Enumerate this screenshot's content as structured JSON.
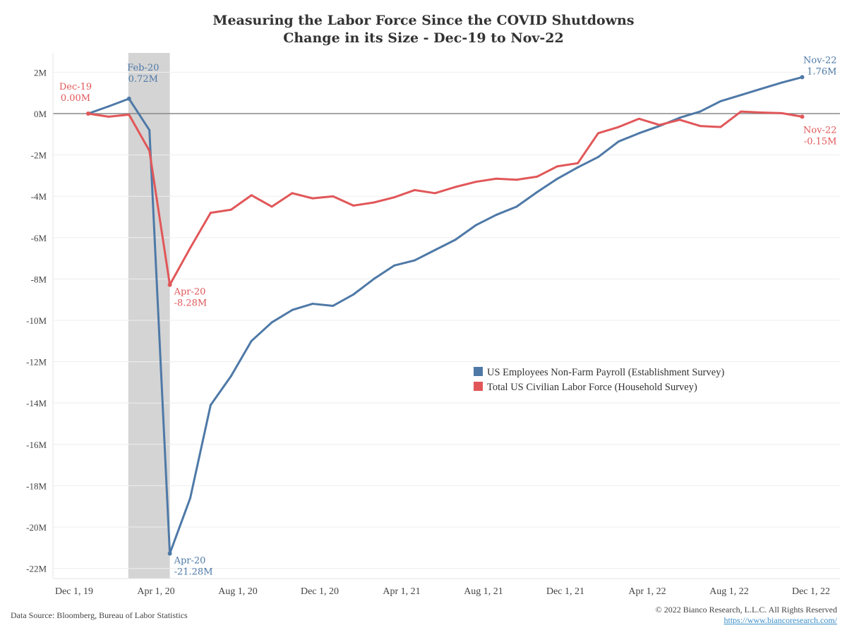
{
  "chart_data": {
    "type": "line",
    "title": "Measuring the Labor Force Since the COVID Shutdowns",
    "subtitle": "Change in its Size - Dec-19 to Nov-22",
    "xlabel": "",
    "ylabel": "",
    "x": [
      "Dec-19",
      "Jan-20",
      "Feb-20",
      "Mar-20",
      "Apr-20",
      "May-20",
      "Jun-20",
      "Jul-20",
      "Aug-20",
      "Sep-20",
      "Oct-20",
      "Nov-20",
      "Dec-20",
      "Jan-21",
      "Feb-21",
      "Mar-21",
      "Apr-21",
      "May-21",
      "Jun-21",
      "Jul-21",
      "Aug-21",
      "Sep-21",
      "Oct-21",
      "Nov-21",
      "Dec-21",
      "Jan-22",
      "Feb-22",
      "Mar-22",
      "Apr-22",
      "May-22",
      "Jun-22",
      "Jul-22",
      "Aug-22",
      "Sep-22",
      "Oct-22",
      "Nov-22"
    ],
    "x_tick_labels": [
      "Dec 1, 19",
      "Apr 1, 20",
      "Aug 1, 20",
      "Dec 1, 20",
      "Apr 1, 21",
      "Aug 1, 21",
      "Dec 1, 21",
      "Apr 1, 22",
      "Aug 1, 22",
      "Dec 1, 22"
    ],
    "y_ticks": [
      2,
      0,
      -2,
      -4,
      -6,
      -8,
      -10,
      -12,
      -14,
      -16,
      -18,
      -20,
      -22
    ],
    "y_tick_labels": [
      "2M",
      "0M",
      "-2M",
      "-4M",
      "-6M",
      "-8M",
      "-10M",
      "-12M",
      "-14M",
      "-16M",
      "-18M",
      "-20M",
      "-22M"
    ],
    "ylim": [
      -22.5,
      3
    ],
    "y_unit": "millions",
    "grid": true,
    "legend_position": "center-right",
    "shaded_region": {
      "from": "Feb-20",
      "to": "Apr-20",
      "color": "#d4d4d4"
    },
    "series": [
      {
        "name": "US Employees Non-Farm Payroll (Establishment Survey)",
        "color": "#4e79a7",
        "values": [
          0,
          0.35,
          0.72,
          -0.8,
          -21.28,
          -18.6,
          -14.1,
          -12.7,
          -11.0,
          -10.1,
          -9.5,
          -9.2,
          -9.3,
          -8.75,
          -8.0,
          -7.35,
          -7.1,
          -6.6,
          -6.1,
          -5.4,
          -4.9,
          -4.5,
          -3.8,
          -3.15,
          -2.6,
          -2.1,
          -1.35,
          -0.95,
          -0.6,
          -0.2,
          0.1,
          0.6,
          0.9,
          1.2,
          1.5,
          1.76
        ]
      },
      {
        "name": "Total US Civilian Labor Force (Household Survey)",
        "color": "#e15759",
        "values": [
          0,
          -0.15,
          -0.05,
          -1.8,
          -8.28,
          -6.5,
          -4.8,
          -4.65,
          -3.95,
          -4.5,
          -3.85,
          -4.1,
          -4.0,
          -4.45,
          -4.3,
          -4.05,
          -3.7,
          -3.85,
          -3.55,
          -3.3,
          -3.15,
          -3.2,
          -3.05,
          -2.55,
          -2.4,
          -0.95,
          -0.65,
          -0.25,
          -0.55,
          -0.3,
          -0.6,
          -0.65,
          0.1,
          0.05,
          0.02,
          -0.15
        ]
      }
    ],
    "annotations": [
      {
        "series": 1,
        "x": "Dec-19",
        "lines": [
          "Dec-19",
          "0.00M"
        ]
      },
      {
        "series": 0,
        "x": "Feb-20",
        "lines": [
          "Feb-20",
          "0.72M"
        ]
      },
      {
        "series": 1,
        "x": "Apr-20",
        "lines": [
          "Apr-20",
          "-8.28M"
        ]
      },
      {
        "series": 0,
        "x": "Apr-20",
        "lines": [
          "Apr-20",
          "-21.28M"
        ]
      },
      {
        "series": 0,
        "x": "Nov-22",
        "lines": [
          "Nov-22",
          "1.76M"
        ]
      },
      {
        "series": 1,
        "x": "Nov-22",
        "lines": [
          "Nov-22",
          "-0.15M"
        ]
      }
    ]
  },
  "footer": {
    "source": "Data Source: Bloomberg, Bureau of Labor Statistics",
    "copyright": "© 2022 Bianco Research, L.L.C. All Rights Reserved",
    "url": "https://www.biancoresearch.com/"
  }
}
